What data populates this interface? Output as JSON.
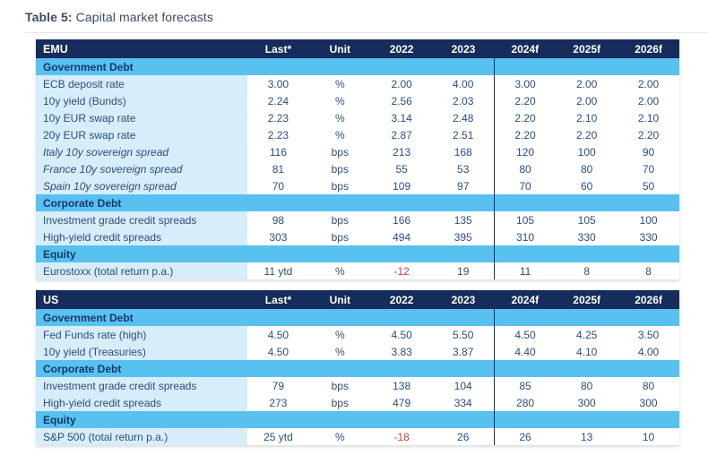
{
  "title": {
    "prefix": "Table 5:",
    "rest": "Capital market forecasts"
  },
  "colors": {
    "header_navy": "#152c5c",
    "section_sky_blue": "#58c1ef",
    "label_light_blue": "#d7edf9",
    "body_text_navy": "#2c4e7c",
    "section_text_navy": "#14386b",
    "negative_red": "#c94141",
    "divider_navy": "#1a2f57",
    "caption_slate": "#3d4a5c"
  },
  "columns": [
    "Last*",
    "Unit",
    "2022",
    "2023",
    "2024f",
    "2025f",
    "2026f"
  ],
  "tables": [
    {
      "name": "EMU",
      "rows": [
        {
          "type": "section",
          "label": "Government Debt"
        },
        {
          "type": "data",
          "label": "ECB deposit rate",
          "italic": false,
          "values": [
            "3.00",
            "%",
            "2.00",
            "4.00",
            "3.00",
            "2.00",
            "2.00"
          ]
        },
        {
          "type": "data",
          "label": "10y yield (Bunds)",
          "italic": false,
          "values": [
            "2.24",
            "%",
            "2.56",
            "2.03",
            "2.20",
            "2.00",
            "2.00"
          ]
        },
        {
          "type": "data",
          "label": "10y EUR swap rate",
          "italic": false,
          "values": [
            "2.23",
            "%",
            "3.14",
            "2.48",
            "2.20",
            "2.10",
            "2.10"
          ]
        },
        {
          "type": "data",
          "label": "20y EUR swap rate",
          "italic": false,
          "values": [
            "2.23",
            "%",
            "2.87",
            "2.51",
            "2.20",
            "2.20",
            "2.20"
          ]
        },
        {
          "type": "data",
          "label": "Italy 10y sovereign spread",
          "italic": true,
          "values": [
            "116",
            "bps",
            "213",
            "168",
            "120",
            "100",
            "90"
          ]
        },
        {
          "type": "data",
          "label": "France 10y sovereign spread",
          "italic": true,
          "values": [
            "81",
            "bps",
            "55",
            "53",
            "80",
            "80",
            "70"
          ]
        },
        {
          "type": "data",
          "label": "Spain 10y sovereign spread",
          "italic": true,
          "values": [
            "70",
            "bps",
            "109",
            "97",
            "70",
            "60",
            "50"
          ]
        },
        {
          "type": "section",
          "label": "Corporate Debt"
        },
        {
          "type": "data",
          "label": "Investment grade credit spreads",
          "italic": false,
          "values": [
            "98",
            "bps",
            "166",
            "135",
            "105",
            "105",
            "100"
          ]
        },
        {
          "type": "data",
          "label": "High-yield credit spreads",
          "italic": false,
          "values": [
            "303",
            "bps",
            "494",
            "395",
            "310",
            "330",
            "330"
          ]
        },
        {
          "type": "section",
          "label": "Equity"
        },
        {
          "type": "data",
          "label": "Eurostoxx (total return p.a.)",
          "italic": false,
          "values": [
            "11 ytd",
            "%",
            "-12",
            "19",
            "11",
            "8",
            "8"
          ]
        }
      ]
    },
    {
      "name": "US",
      "rows": [
        {
          "type": "section",
          "label": "Government Debt"
        },
        {
          "type": "data",
          "label": "Fed Funds rate (high)",
          "italic": false,
          "values": [
            "4.50",
            "%",
            "4.50",
            "5.50",
            "4.50",
            "4.25",
            "3.50"
          ]
        },
        {
          "type": "data",
          "label": "10y yield (Treasuries)",
          "italic": false,
          "values": [
            "4.50",
            "%",
            "3.83",
            "3.87",
            "4.40",
            "4.10",
            "4.00"
          ]
        },
        {
          "type": "section",
          "label": "Corporate Debt"
        },
        {
          "type": "data",
          "label": "Investment grade credit spreads",
          "italic": false,
          "values": [
            "79",
            "bps",
            "138",
            "104",
            "85",
            "80",
            "80"
          ]
        },
        {
          "type": "data",
          "label": "High-yield credit spreads",
          "italic": false,
          "values": [
            "273",
            "bps",
            "479",
            "334",
            "280",
            "300",
            "300"
          ]
        },
        {
          "type": "section",
          "label": "Equity"
        },
        {
          "type": "data",
          "label": "S&P 500 (total return p.a.)",
          "italic": false,
          "values": [
            "25 ytd",
            "%",
            "-18",
            "26",
            "26",
            "13",
            "10"
          ]
        }
      ]
    }
  ]
}
